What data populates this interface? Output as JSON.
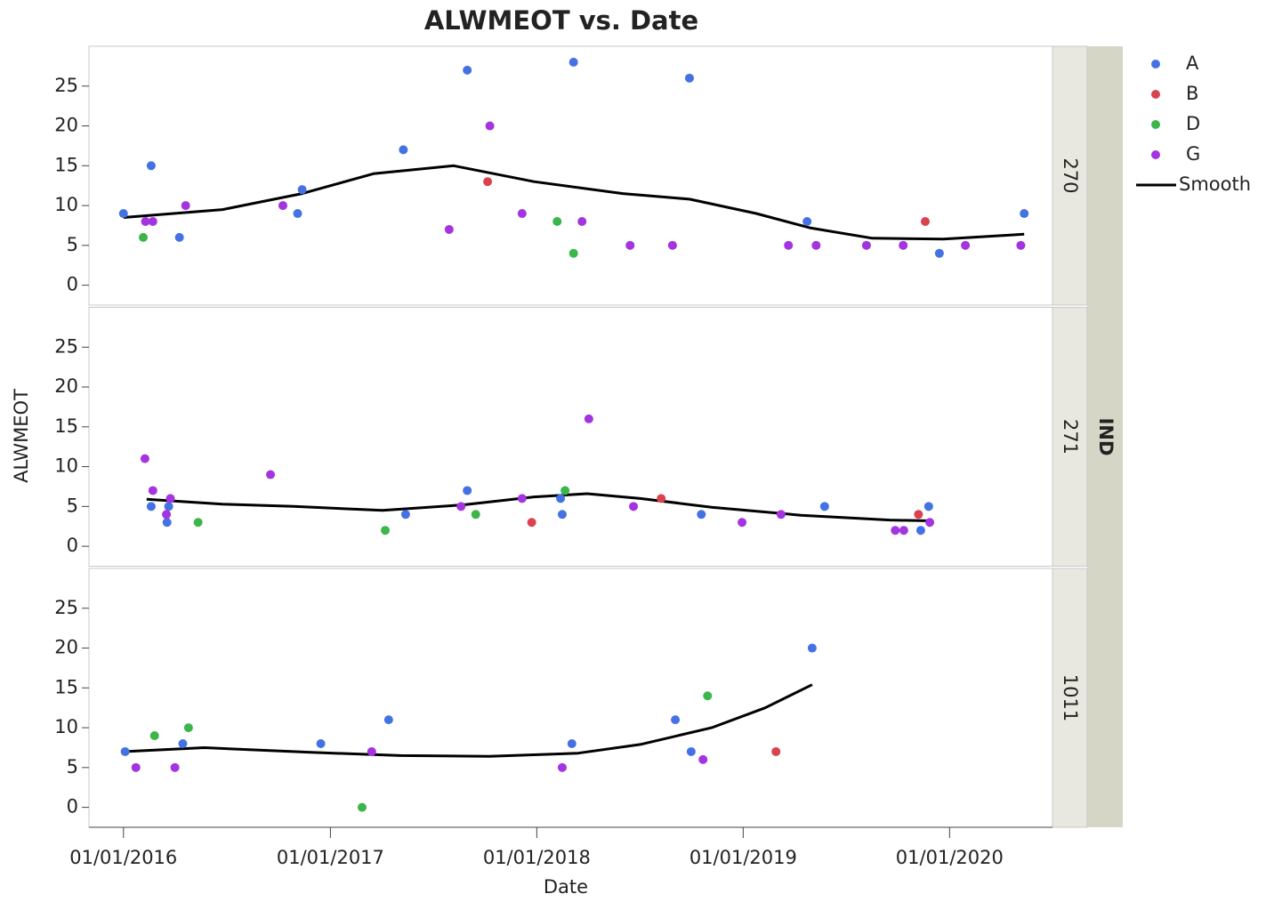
{
  "chart_data": {
    "type": "scatter",
    "title": "ALWMEOT vs. Date",
    "xlabel": "Date",
    "ylabel": "ALWMEOT",
    "facet_title": "IND",
    "panels": [
      "270",
      "271",
      "1011"
    ],
    "xlim": [
      "2015-11-01",
      "2020-07-01"
    ],
    "xticks": [
      {
        "value": "2016-01-01",
        "label": "01/01/2016"
      },
      {
        "value": "2017-01-01",
        "label": "01/01/2017"
      },
      {
        "value": "2018-01-01",
        "label": "01/01/2018"
      },
      {
        "value": "2019-01-01",
        "label": "01/01/2019"
      },
      {
        "value": "2020-01-01",
        "label": "01/01/2020"
      }
    ],
    "ylim": [
      -2.5,
      30
    ],
    "yticks": [
      0,
      5,
      10,
      15,
      20,
      25
    ],
    "series": [
      {
        "name": "A",
        "color": "#4472e4",
        "data": [
          {
            "x": [
              "2016-01-01",
              "2016-02-19",
              "2016-04-09",
              "2016-11-04",
              "2016-11-12",
              "2017-05-10",
              "2017-08-31",
              "2018-03-07",
              "2018-09-28",
              "2019-04-24",
              "2019-12-14",
              "2020-05-12"
            ],
            "values": [
              9,
              15,
              6,
              9,
              12,
              17,
              27,
              28,
              26,
              8,
              4,
              9
            ]
          },
          {
            "x": [
              "2016-02-19",
              "2016-03-18",
              "2016-03-21",
              "2017-05-14",
              "2017-08-31",
              "2018-02-12",
              "2018-02-15",
              "2018-10-19",
              "2019-05-25",
              "2019-11-11",
              "2019-11-25"
            ],
            "values": [
              5,
              3,
              5,
              4,
              7,
              6,
              4,
              4,
              5,
              2,
              5
            ]
          },
          {
            "x": [
              "2016-01-04",
              "2016-04-15",
              "2016-12-15",
              "2017-04-14",
              "2018-03-04",
              "2018-09-03",
              "2018-10-01",
              "2019-05-03"
            ],
            "values": [
              7,
              8,
              8,
              11,
              8,
              11,
              7,
              20
            ]
          }
        ]
      },
      {
        "name": "B",
        "color": "#d9434f",
        "data": [
          {
            "x": [
              "2017-10-06",
              "2019-11-19"
            ],
            "values": [
              13,
              8
            ]
          },
          {
            "x": [
              "2017-12-23",
              "2018-08-09",
              "2019-11-07"
            ],
            "values": [
              3,
              6,
              4
            ]
          },
          {
            "x": [
              "2019-02-28"
            ],
            "values": [
              7
            ]
          }
        ]
      },
      {
        "name": "D",
        "color": "#3cb54a",
        "data": [
          {
            "x": [
              "2016-02-05",
              "2018-02-06",
              "2018-03-07"
            ],
            "values": [
              6,
              8,
              4
            ]
          },
          {
            "x": [
              "2016-05-12",
              "2017-04-08",
              "2017-09-15",
              "2018-02-20"
            ],
            "values": [
              3,
              2,
              4,
              7
            ]
          },
          {
            "x": [
              "2016-02-25",
              "2016-04-25",
              "2017-02-26",
              "2018-10-30"
            ],
            "values": [
              9,
              10,
              0,
              14
            ]
          }
        ]
      },
      {
        "name": "G",
        "color": "#a334e0",
        "data": [
          {
            "x": [
              "2016-02-09",
              "2016-02-22",
              "2016-04-20",
              "2016-10-09",
              "2017-07-30",
              "2017-10-10",
              "2017-12-06",
              "2018-03-22",
              "2018-06-15",
              "2018-08-29",
              "2019-03-22",
              "2019-05-10",
              "2019-08-07",
              "2019-10-11",
              "2020-01-29",
              "2020-05-06"
            ],
            "values": [
              8,
              8,
              10,
              10,
              7,
              20,
              9,
              8,
              5,
              5,
              5,
              5,
              5,
              5,
              5,
              5
            ]
          },
          {
            "x": [
              "2016-02-08",
              "2016-02-22",
              "2016-03-17",
              "2016-03-24",
              "2016-09-17",
              "2017-08-20",
              "2017-12-06",
              "2018-04-03",
              "2018-06-21",
              "2018-12-30",
              "2019-03-09",
              "2019-09-27",
              "2019-10-12",
              "2019-11-27"
            ],
            "values": [
              11,
              7,
              4,
              6,
              9,
              5,
              6,
              16,
              5,
              3,
              4,
              2,
              2,
              3
            ]
          },
          {
            "x": [
              "2016-01-23",
              "2016-04-01",
              "2017-03-15",
              "2018-02-15",
              "2018-10-22"
            ],
            "values": [
              5,
              5,
              7,
              5,
              6
            ]
          }
        ]
      }
    ],
    "smooth": {
      "name": "Smooth",
      "color": "#000000",
      "data": [
        {
          "x": [
            "2016-01-01",
            "2016-06-24",
            "2016-11-12",
            "2017-03-18",
            "2017-08-07",
            "2017-12-27",
            "2018-06-02",
            "2018-09-28",
            "2019-01-24",
            "2019-04-29",
            "2019-08-17",
            "2019-12-21",
            "2020-05-12"
          ],
          "values": [
            8.5,
            9.5,
            11.5,
            14,
            15,
            13,
            11.5,
            10.8,
            9,
            7.2,
            5.9,
            5.8,
            6.4
          ]
        },
        {
          "x": [
            "2016-02-11",
            "2016-06-24",
            "2016-10-28",
            "2017-04-03",
            "2017-08-23",
            "2017-12-27",
            "2018-03-31",
            "2018-07-03",
            "2018-11-06",
            "2019-04-13",
            "2019-09-17",
            "2019-11-27"
          ],
          "values": [
            5.9,
            5.3,
            5.0,
            4.5,
            5.2,
            6.2,
            6.6,
            6.0,
            4.9,
            3.9,
            3.3,
            3.2
          ]
        },
        {
          "x": [
            "2016-01-04",
            "2016-05-23",
            "2016-11-28",
            "2017-05-05",
            "2017-10-09",
            "2018-03-15",
            "2018-07-03",
            "2018-11-06",
            "2019-02-09",
            "2019-05-03"
          ],
          "values": [
            7.0,
            7.5,
            6.9,
            6.5,
            6.4,
            6.8,
            7.9,
            10,
            12.5,
            15.4
          ]
        }
      ]
    }
  }
}
